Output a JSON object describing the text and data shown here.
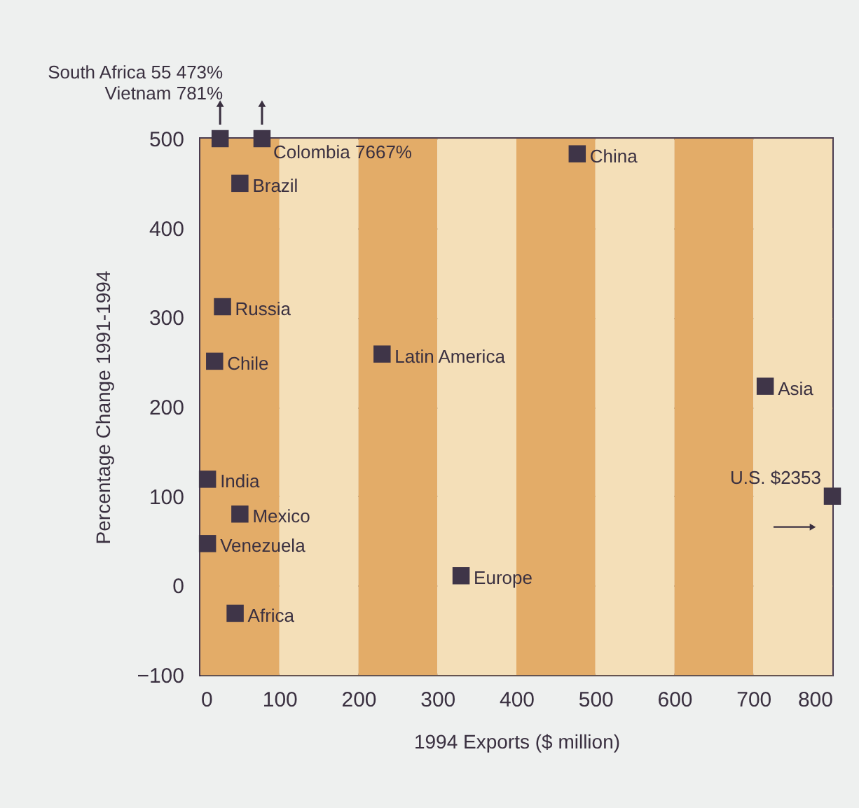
{
  "chart_data": {
    "type": "scatter",
    "xlabel": "1994 Exports ($ million)",
    "ylabel": "Percentage Change 1991-1994",
    "xlim": [
      0,
      800
    ],
    "ylim": [
      -100,
      500
    ],
    "xticks": [
      0,
      100,
      200,
      300,
      400,
      500,
      600,
      700,
      800
    ],
    "yticks": [
      -100,
      0,
      100,
      200,
      300,
      400,
      500
    ],
    "grid": "y",
    "marker": "square",
    "series": [
      {
        "color": "#3f3548",
        "x": [
          25,
          78,
          50,
          28,
          18,
          230,
          477,
          715,
          800,
          9,
          50,
          9,
          330,
          44
        ],
        "values": [
          500,
          500,
          450,
          312,
          251,
          259,
          483,
          223,
          100,
          119,
          80,
          47,
          11,
          -31
        ]
      }
    ],
    "annotations": [
      {
        "text": "South Africa 55 473%\nVietnam 781%",
        "x": 25,
        "y": 500
      },
      {
        "text": "Colombia 7667%",
        "x": 78,
        "y": 500
      },
      {
        "text": "Brazil",
        "x": 50,
        "y": 450
      },
      {
        "text": "Russia",
        "x": 28,
        "y": 312
      },
      {
        "text": "Chile",
        "x": 18,
        "y": 251
      },
      {
        "text": "Latin America",
        "x": 230,
        "y": 259
      },
      {
        "text": "China",
        "x": 477,
        "y": 483
      },
      {
        "text": "Asia",
        "x": 715,
        "y": 223
      },
      {
        "text": "U.S. $2353",
        "x": 800,
        "y": 100
      },
      {
        "text": "India",
        "x": 9,
        "y": 119
      },
      {
        "text": "Mexico",
        "x": 50,
        "y": 80
      },
      {
        "text": "Venezuela",
        "x": 9,
        "y": 47
      },
      {
        "text": "Europe",
        "x": 330,
        "y": 11
      },
      {
        "text": "Africa",
        "x": 44,
        "y": -31
      }
    ],
    "bands": [
      {
        "axis": "x",
        "from": 0,
        "to": 100,
        "color": "#e3ac68"
      },
      {
        "axis": "x",
        "from": 100,
        "to": 200,
        "color": "#f4dfb8"
      },
      {
        "axis": "x",
        "from": 200,
        "to": 300,
        "color": "#e3ac68"
      },
      {
        "axis": "x",
        "from": 300,
        "to": 400,
        "color": "#f4dfb8"
      },
      {
        "axis": "x",
        "from": 400,
        "to": 500,
        "color": "#e3ac68"
      },
      {
        "axis": "x",
        "from": 500,
        "to": 600,
        "color": "#f4dfb8"
      },
      {
        "axis": "x",
        "from": 600,
        "to": 700,
        "color": "#e3ac68"
      },
      {
        "axis": "x",
        "from": 700,
        "to": 800,
        "color": "#f4dfb8"
      }
    ]
  }
}
